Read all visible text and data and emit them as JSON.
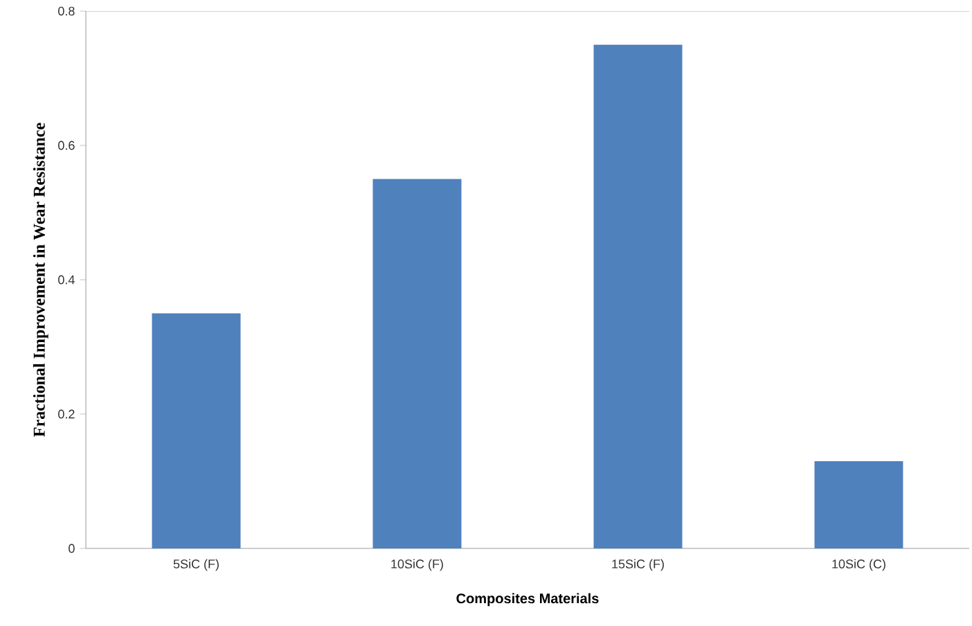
{
  "chart_data": {
    "type": "bar",
    "xlabel": "Composites Materials",
    "ylabel": "Fractional Improvement in Wear Resistance",
    "categories": [
      "5SiC (F)",
      "10SiC (F)",
      "15SiC (F)",
      "10SiC (C)"
    ],
    "values": [
      0.35,
      0.55,
      0.75,
      0.13
    ],
    "color": "#4f81bd",
    "ylim": [
      0,
      0.8
    ],
    "yticks": [
      0,
      0.2,
      0.4,
      0.6,
      0.8
    ],
    "grid": false
  }
}
